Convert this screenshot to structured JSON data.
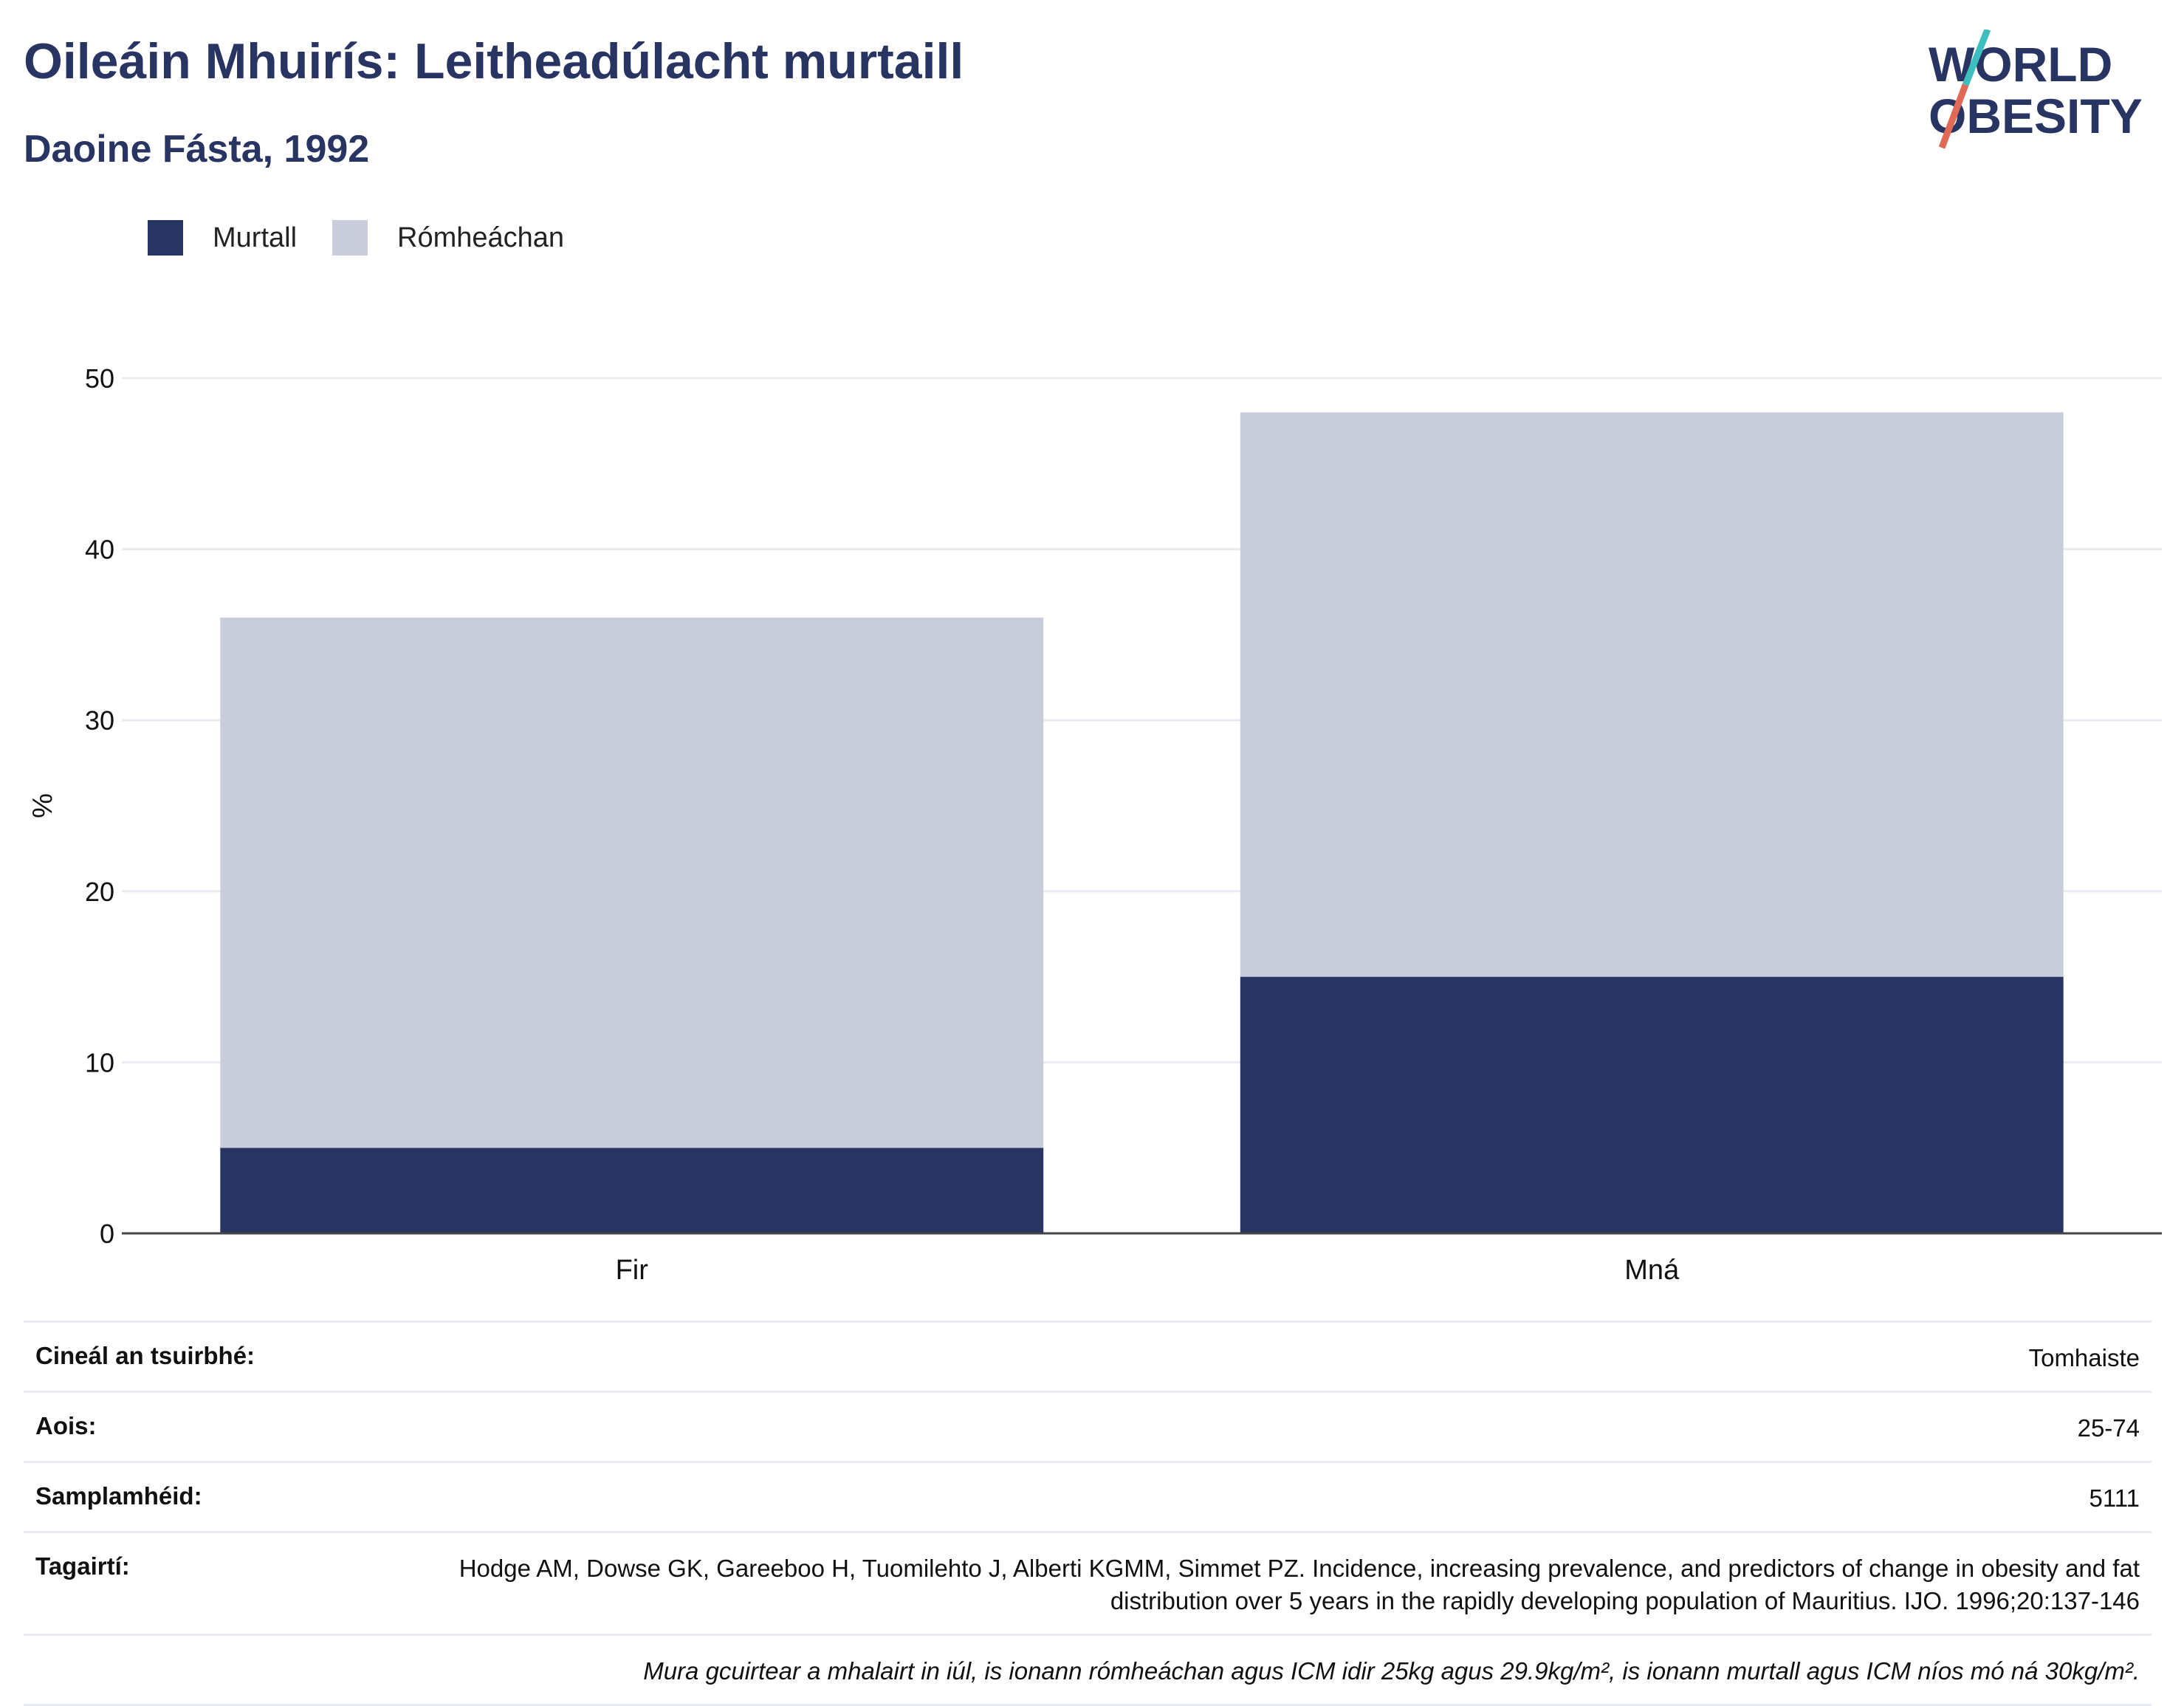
{
  "header": {
    "title": "Oileáin Mhuirís: Leitheadúlacht murtaill",
    "subtitle": "Daoine Fásta, 1992"
  },
  "logo": {
    "line1": "WORLD",
    "line2": "OBESITY",
    "colors": {
      "text": "#283462",
      "slash_top": "#3dbfbf",
      "slash_bottom": "#e06a55"
    }
  },
  "legend": [
    {
      "label": "Murtall",
      "color": "#283462"
    },
    {
      "label": "Rómheáchan",
      "color": "#c9ccd9"
    }
  ],
  "chart_data": {
    "type": "bar",
    "stacked": true,
    "categories": [
      "Fir",
      "Mná"
    ],
    "series": [
      {
        "name": "Murtall",
        "values": [
          5,
          15
        ],
        "color": "#283462"
      },
      {
        "name": "Rómheáchan",
        "values": [
          31,
          33
        ],
        "color": "#c9ccd9"
      }
    ],
    "ylabel": "%",
    "ylim": [
      0,
      50
    ],
    "yticks": [
      0,
      10,
      20,
      30,
      40,
      50
    ],
    "grid": true,
    "legend_position": "top-left"
  },
  "info": {
    "survey_type_label": "Cineál an tsuirbhé:",
    "survey_type_value": "Tomhaiste",
    "age_label": "Aois:",
    "age_value": "25-74",
    "sample_label": "Samplamhéid:",
    "sample_value": "5111",
    "references_label": "Tagairtí:",
    "references_value": "Hodge AM, Dowse GK, Gareeboo H, Tuomilehto J, Alberti KGMM, Simmet PZ. Incidence, increasing prevalence, and predictors of change in obesity and fat distribution over 5 years in the rapidly developing population of Mauritius. IJO. 1996;20:137-146",
    "note": "Mura gcuirtear a mhalairt in iúl, is ionann rómheáchan agus ICM idir 25kg agus 29.9kg/m², is ionann murtall agus ICM níos mó ná 30kg/m²."
  }
}
